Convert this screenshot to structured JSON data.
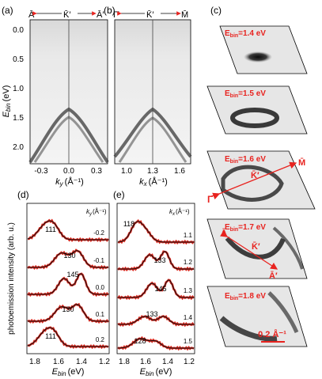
{
  "panel_labels": {
    "a": "(a)",
    "b": "(b)",
    "c": "(c)",
    "d": "(d)",
    "e": "(e)"
  },
  "panel_a": {
    "top_labels": {
      "left": "Ā",
      "mid": "K̄′",
      "right": "Ā′"
    },
    "ylabel": "E",
    "ylabel_sub": "bin",
    "ylabel_unit": "(eV)",
    "xlabel": "k",
    "xlabel_sub": "y",
    "xlabel_unit": "(Å⁻¹)",
    "x_ticks": [
      "-0.3",
      "0.0",
      "0.3"
    ],
    "y_ticks": [
      "0.0",
      "0.5",
      "1.0",
      "1.5",
      "2.0"
    ]
  },
  "panel_b": {
    "top_labels": {
      "left": "Γ̄",
      "mid": "K̄′",
      "right": "M̄"
    },
    "xlabel": "k",
    "xlabel_sub": "x",
    "xlabel_unit": "(Å⁻¹)",
    "x_ticks": [
      "1.0",
      "1.3",
      "1.6"
    ]
  },
  "panel_c": {
    "maps": [
      {
        "label": "E",
        "sub": "bin",
        "value": "=1.4 eV"
      },
      {
        "label": "E",
        "sub": "bin",
        "value": "=1.5 eV"
      },
      {
        "label": "E",
        "sub": "bin",
        "value": "=1.6 eV"
      },
      {
        "label": "E",
        "sub": "bin",
        "value": "=1.7 eV"
      },
      {
        "label": "E",
        "sub": "bin",
        "value": "=1.8 eV"
      }
    ],
    "map3_points": {
      "m": "M̄",
      "k": "K̄′",
      "g": "Γ̄"
    },
    "map4_points": {
      "a": "Ā",
      "k": "K̄′",
      "a2": "Ā′"
    },
    "scale_bar": "0.2 Å⁻¹",
    "accent_color": "#e8231f"
  },
  "panel_d": {
    "ylabel": "photoemission intensity (arb. u.)",
    "xlabel": "E",
    "xlabel_sub": "bin",
    "xlabel_unit": "(eV)",
    "x_ticks": [
      "1.8",
      "1.6",
      "1.4",
      "1.2"
    ],
    "legend": "k",
    "legend_sub": "y",
    "legend_unit": "(Å⁻¹)",
    "curves": [
      {
        "k": "-0.2",
        "label": "111"
      },
      {
        "k": "-0.1",
        "label": "130"
      },
      {
        "k": "0.0",
        "label": "145"
      },
      {
        "k": "0.1",
        "label": "130"
      },
      {
        "k": "0.2",
        "label": "111"
      }
    ]
  },
  "panel_e": {
    "xlabel": "E",
    "xlabel_sub": "bin",
    "xlabel_unit": "(eV)",
    "x_ticks": [
      "1.8",
      "1.6",
      "1.4",
      "1.2"
    ],
    "legend": "k",
    "legend_sub": "x",
    "legend_unit": "(Å⁻¹)",
    "curves": [
      {
        "k": "1.1",
        "label": "118"
      },
      {
        "k": "1.2",
        "label": "133"
      },
      {
        "k": "1.3",
        "label": "145"
      },
      {
        "k": "1.4",
        "label": "133"
      },
      {
        "k": "1.5",
        "label": "128"
      }
    ]
  },
  "colors": {
    "data": "#d8281e",
    "fit": "#111111"
  }
}
